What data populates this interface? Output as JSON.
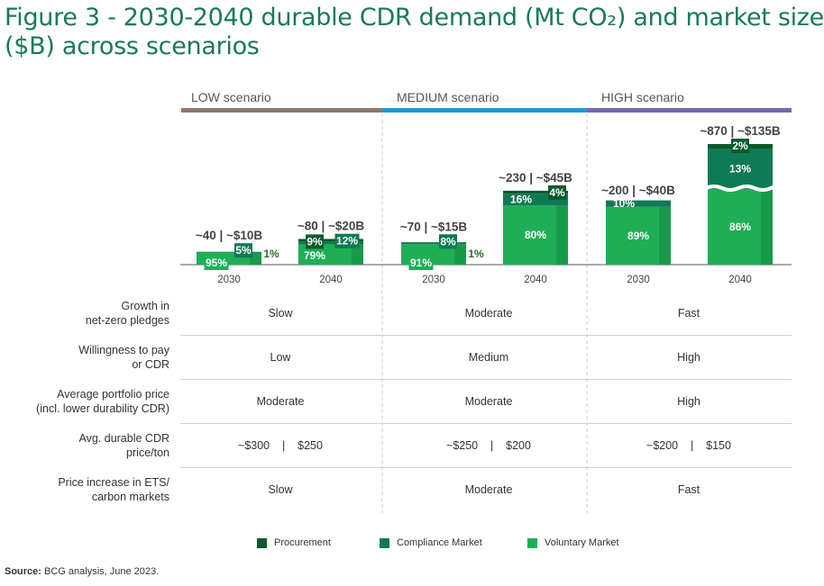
{
  "title": "Figure 3 - 2030-2040 durable CDR demand (Mt CO₂) and market size ($B) across scenarios",
  "colors": {
    "procurement": "#0b5a2f",
    "compliance": "#0f7a55",
    "voluntary": "#1fae55",
    "voluntary_shade": "#179a4a",
    "low": "#8b7a68",
    "medium": "#1a9bd7",
    "high": "#7b64b0"
  },
  "scenarios": [
    {
      "label": "LOW scenario"
    },
    {
      "label": "MEDIUM scenario"
    },
    {
      "label": "HIGH scenario"
    }
  ],
  "chart_data": {
    "type": "bar",
    "stacked": true,
    "title": "2030-2040 durable CDR demand (Mt CO2) and market size ($B)",
    "categories": [
      "LOW 2030",
      "LOW 2040",
      "MEDIUM 2030",
      "MEDIUM 2040",
      "HIGH 2030",
      "HIGH 2040"
    ],
    "x_tick_labels": [
      "2030",
      "2040",
      "2030",
      "2040",
      "2030",
      "2040"
    ],
    "totals_mt": [
      40,
      80,
      70,
      230,
      200,
      870
    ],
    "total_labels": [
      "~40 | ~$10B",
      "~80 | ~$20B",
      "~70 | ~$15B",
      "~230 | ~$45B",
      "~200 | ~$40B",
      "~870 | ~$135B"
    ],
    "series": [
      {
        "name": "Voluntary Market",
        "values": [
          95,
          79,
          91,
          80,
          89,
          86
        ],
        "labels": [
          "95%",
          "79%",
          "91%",
          "80%",
          "89%",
          "86%"
        ]
      },
      {
        "name": "Compliance Market",
        "values": [
          5,
          12,
          8,
          16,
          10,
          13
        ],
        "labels": [
          "5%",
          "12%",
          "8%",
          "16%",
          "10%",
          "13%"
        ]
      },
      {
        "name": "Procurement",
        "values": [
          1,
          9,
          1,
          4,
          0,
          2
        ],
        "labels": [
          "1%",
          "9%",
          "1%",
          "4%",
          "",
          "2%"
        ]
      }
    ],
    "axis_break_on": "HIGH 2040",
    "legend": [
      "Procurement",
      "Compliance Market",
      "Voluntary Market"
    ],
    "legend_position": "bottom"
  },
  "table": {
    "rows": [
      {
        "label": "Growth in\nnet-zero pledges",
        "cells": [
          "Slow",
          "Moderate",
          "Fast"
        ]
      },
      {
        "label": "Willingness to pay\nor CDR",
        "cells": [
          "Low",
          "Medium",
          "High"
        ]
      },
      {
        "label": "Average portfolio price\n(incl. lower durability CDR)",
        "cells": [
          "Moderate",
          "Moderate",
          "High"
        ]
      },
      {
        "label": "Avg. durable CDR\nprice/ton",
        "cells": [
          "~$300    |    $250",
          "~$250    |    $200",
          "~$200    |    $150"
        ]
      },
      {
        "label": "Price increase in ETS/\ncarbon markets",
        "cells": [
          "Slow",
          "Moderate",
          "Fast"
        ]
      }
    ]
  },
  "source": {
    "bold": "Source:",
    "text": " BCG analysis, June 2023."
  }
}
